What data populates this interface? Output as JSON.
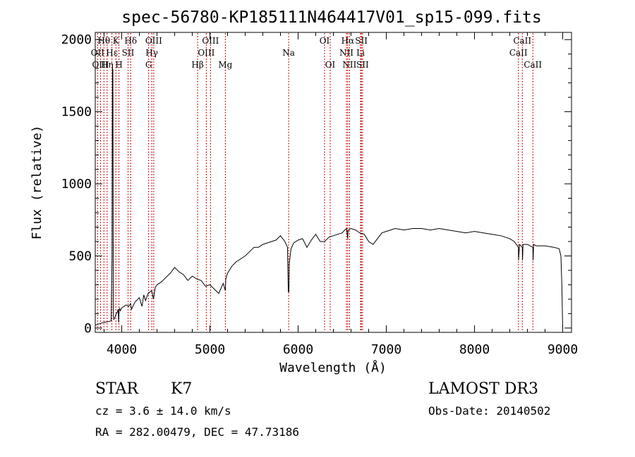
{
  "title": "spec-56780-KP185111N464417V01_sp15-099.fits",
  "chart_data": {
    "type": "line",
    "title": "spec-56780-KP185111N464417V01_sp15-099.fits",
    "xlabel": "Wavelength (Å)",
    "ylabel": "Flux (relative)",
    "xlim": [
      3700,
      9100
    ],
    "ylim": [
      -30,
      2050
    ],
    "xticks": [
      4000,
      5000,
      6000,
      7000,
      8000,
      9000
    ],
    "yticks": [
      0,
      500,
      1000,
      1500,
      2000
    ],
    "xtick_labels": [
      "4000",
      "5000",
      "6000",
      "7000",
      "8000",
      "9000"
    ],
    "ytick_labels": [
      "0",
      "500",
      "1000",
      "1500",
      "2000"
    ],
    "series": [
      {
        "name": "flux",
        "x": [
          3700,
          3750,
          3800,
          3850,
          3880,
          3890,
          3895,
          3900,
          3905,
          3910,
          3920,
          3935,
          3950,
          3960,
          3965,
          3970,
          3975,
          3985,
          4000,
          4050,
          4080,
          4100,
          4110,
          4150,
          4200,
          4230,
          4250,
          4270,
          4300,
          4320,
          4340,
          4360,
          4380,
          4400,
          4450,
          4500,
          4550,
          4600,
          4650,
          4700,
          4750,
          4800,
          4850,
          4900,
          4950,
          5000,
          5050,
          5100,
          5150,
          5175,
          5180,
          5200,
          5250,
          5300,
          5350,
          5400,
          5450,
          5500,
          5550,
          5600,
          5650,
          5700,
          5750,
          5800,
          5850,
          5880,
          5889,
          5893,
          5896,
          5900,
          5920,
          5950,
          6000,
          6050,
          6100,
          6150,
          6200,
          6250,
          6300,
          6350,
          6400,
          6450,
          6500,
          6530,
          6550,
          6562,
          6565,
          6570,
          6600,
          6650,
          6700,
          6750,
          6800,
          6850,
          6900,
          6950,
          7000,
          7100,
          7200,
          7300,
          7400,
          7500,
          7600,
          7700,
          7800,
          7900,
          8000,
          8100,
          8200,
          8300,
          8400,
          8450,
          8498,
          8500,
          8510,
          8542,
          8545,
          8550,
          8600,
          8662,
          8665,
          8670,
          8700,
          8800,
          8900,
          8960,
          8980,
          8990,
          9000
        ],
        "y": [
          20,
          30,
          40,
          45,
          50,
          500,
          1800,
          1790,
          80,
          60,
          70,
          95,
          110,
          130,
          40,
          120,
          135,
          120,
          140,
          160,
          150,
          170,
          130,
          180,
          210,
          150,
          230,
          190,
          240,
          250,
          260,
          200,
          280,
          300,
          320,
          350,
          380,
          420,
          390,
          370,
          330,
          360,
          340,
          330,
          290,
          300,
          270,
          240,
          310,
          260,
          340,
          380,
          430,
          460,
          480,
          500,
          530,
          560,
          560,
          580,
          590,
          600,
          610,
          640,
          600,
          560,
          250,
          300,
          250,
          450,
          550,
          590,
          610,
          620,
          560,
          610,
          650,
          600,
          600,
          630,
          640,
          650,
          660,
          680,
          690,
          620,
          660,
          680,
          690,
          680,
          660,
          650,
          600,
          580,
          620,
          660,
          670,
          690,
          680,
          690,
          690,
          680,
          690,
          680,
          670,
          660,
          670,
          660,
          650,
          640,
          620,
          600,
          560,
          470,
          580,
          560,
          470,
          580,
          580,
          560,
          470,
          580,
          570,
          570,
          560,
          550,
          500,
          300,
          0
        ]
      }
    ],
    "lines": [
      {
        "name": "Hθ",
        "wave": 3798,
        "row": 0
      },
      {
        "name": "OII",
        "wave": 3727,
        "row": 1
      },
      {
        "name": "OIII",
        "wave": 3760,
        "row": 2
      },
      {
        "name": "Hη",
        "wave": 3835,
        "row": 2
      },
      {
        "name": "K",
        "wave": 3934,
        "row": 0
      },
      {
        "name": "Hε",
        "wave": 3889,
        "row": 1
      },
      {
        "name": "H",
        "wave": 3969,
        "row": 2
      },
      {
        "name": "SII",
        "wave": 4072,
        "row": 1
      },
      {
        "name": "Hδ",
        "wave": 4102,
        "row": 0
      },
      {
        "name": "OIII",
        "wave": 4363,
        "row": 0
      },
      {
        "name": "Hγ",
        "wave": 4341,
        "row": 1
      },
      {
        "name": "G",
        "wave": 4305,
        "row": 2
      },
      {
        "name": "Hβ",
        "wave": 4861,
        "row": 2
      },
      {
        "name": "OIII",
        "wave": 5007,
        "row": 0
      },
      {
        "name": "OIII",
        "wave": 4959,
        "row": 1
      },
      {
        "name": "Mg",
        "wave": 5175,
        "row": 2
      },
      {
        "name": "Na",
        "wave": 5893,
        "row": 1
      },
      {
        "name": "OI",
        "wave": 6300,
        "row": 0
      },
      {
        "name": "OI",
        "wave": 6364,
        "row": 2
      },
      {
        "name": "Hα",
        "wave": 6563,
        "row": 0
      },
      {
        "name": "NII",
        "wave": 6548,
        "row": 1
      },
      {
        "name": "NII",
        "wave": 6583,
        "row": 2
      },
      {
        "name": "SII",
        "wave": 6717,
        "row": 0
      },
      {
        "name": "Li",
        "wave": 6708,
        "row": 1
      },
      {
        "name": "SII",
        "wave": 6731,
        "row": 2
      },
      {
        "name": "CaII",
        "wave": 8542,
        "row": 0
      },
      {
        "name": "CaII",
        "wave": 8498,
        "row": 1
      },
      {
        "name": "CaII",
        "wave": 8662,
        "row": 2
      }
    ]
  },
  "info": {
    "object_class": "STAR",
    "subclass": "K7",
    "redshift": "cz = 3.6 ± 14.0 km/s",
    "coords": "RA = 282.00479, DEC =  47.73186",
    "survey": "LAMOST DR3",
    "obs_date": "Obs-Date: 20140502"
  },
  "colors": {
    "line_marker": "#cc0000",
    "spectrum": "#000000",
    "axes": "#000000"
  }
}
